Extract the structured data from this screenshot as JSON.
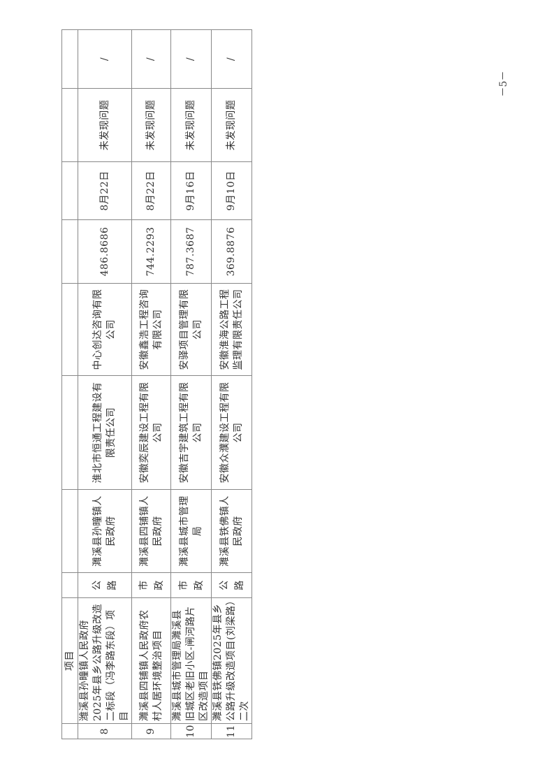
{
  "header": {
    "project": "项目"
  },
  "rows": [
    {
      "no": "8",
      "project": "潍溪县孙疃镇人民政府2025年县乡公路升级改造二标段（冯李路东段）项目",
      "type": "公 路",
      "owner": "濉溪县孙疃镇人民政府",
      "contractor": "淮北市恒通工程建设有限责任公司",
      "supervisor": "中心创达咨询有限公司",
      "amount": "486.8686",
      "date": "8月22日",
      "issue": "未发现问题",
      "remark": "/"
    },
    {
      "no": "9",
      "project": "濉溪县四铺镇人民政府农村人居环境整治项目",
      "type": "市 政",
      "owner": "濉溪县四铺镇人民政府",
      "contractor": "安徽奕辰建设工程有限公司",
      "supervisor": "安徽鑫浩工程咨询有限公司",
      "amount": "744.2293",
      "date": "8月22日",
      "issue": "未发现问题",
      "remark": "/"
    },
    {
      "no": "10",
      "project": "濉溪县城市管理局濉溪县旧城区老旧小区-闸河路片区改造项目",
      "type": "市 政",
      "owner": "濉溪县城市管理局",
      "contractor": "安徽吉宇建筑工程有限公司",
      "supervisor": "安驿项目管理有限公司",
      "amount": "787.3687",
      "date": "9月16日",
      "issue": "未发现问题",
      "remark": "/"
    },
    {
      "no": "11",
      "project": "濉溪县铁佛镇2025年县乡公路升级改造项目(刘梁路）二次",
      "type": "公 路",
      "owner": "濉溪县铁佛镇人民政府",
      "contractor": "安徽众濮建设工程有限公司",
      "supervisor": "安徽淮海公路工程监理有限责任公司",
      "amount": "369.8876",
      "date": "9月10日",
      "issue": "未发现问题",
      "remark": "/"
    }
  ],
  "page_number": "－5－"
}
